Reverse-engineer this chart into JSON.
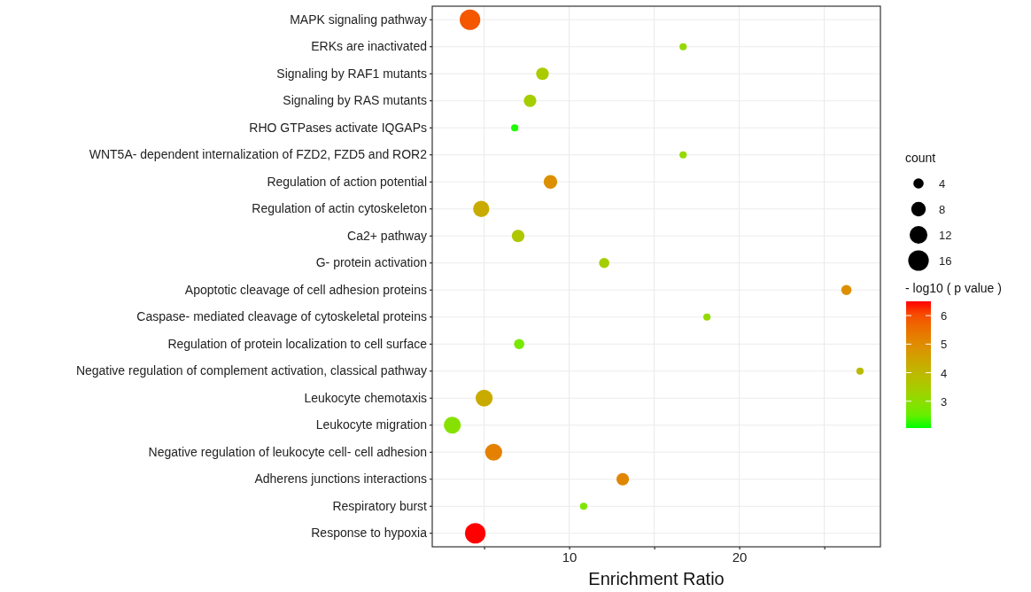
{
  "chart_data": {
    "type": "bubble",
    "orientation": "horizontal",
    "categories": [
      "MAPK signaling pathway",
      "ERKs are inactivated",
      "Signaling by RAF1 mutants",
      "Signaling by RAS mutants",
      "RHO GTPases activate IQGAPs",
      "WNT5A- dependent internalization of FZD2, FZD5 and ROR2",
      "Regulation of action potential",
      "Regulation of actin cytoskeleton",
      "Ca2+ pathway",
      "G- protein activation",
      "Apoptotic cleavage of cell adhesion  proteins",
      "Caspase- mediated cleavage of cytoskeletal proteins",
      "Regulation of protein localization to cell surface",
      "Negative regulation of complement activation, classical pathway",
      "Leukocyte chemotaxis",
      "Leukocyte migration",
      "Negative regulation of leukocyte cell- cell adhesion",
      "Adherens junctions interactions",
      "Respiratory burst",
      "Response to hypoxia"
    ],
    "values": [
      4.17,
      16.7,
      8.43,
      7.7,
      6.8,
      16.7,
      8.9,
      4.83,
      7.0,
      12.06,
      26.3,
      18.1,
      7.06,
      27.1,
      5.0,
      3.13,
      5.56,
      13.15,
      10.85,
      4.48
    ],
    "sizes": [
      16,
      2,
      6,
      6,
      2,
      2,
      7,
      10,
      6,
      4,
      4,
      2,
      4,
      2,
      11,
      11,
      11,
      6,
      2,
      16
    ],
    "cvalues": [
      5.9,
      3.1,
      3.5,
      3.4,
      2.1,
      3.1,
      4.9,
      4.3,
      3.6,
      3.4,
      4.9,
      3.1,
      2.7,
      3.9,
      4.3,
      2.9,
      5.2,
      5.1,
      2.8,
      6.5
    ],
    "size_legend": [
      4,
      8,
      12,
      16
    ],
    "legend_title": "count",
    "clabel": "- log10 ( p value )",
    "clim": [
      2.06,
      6.5
    ],
    "cticks": [
      3,
      4,
      5,
      6
    ],
    "xlim": [
      1.95,
      28.3
    ],
    "xticks": [
      {
        "value": 5,
        "label": null
      },
      10,
      {
        "value": 15,
        "label": null
      },
      20,
      {
        "value": 25,
        "label": null
      }
    ],
    "xlabel": "Enrichment Ratio",
    "grid": true
  }
}
